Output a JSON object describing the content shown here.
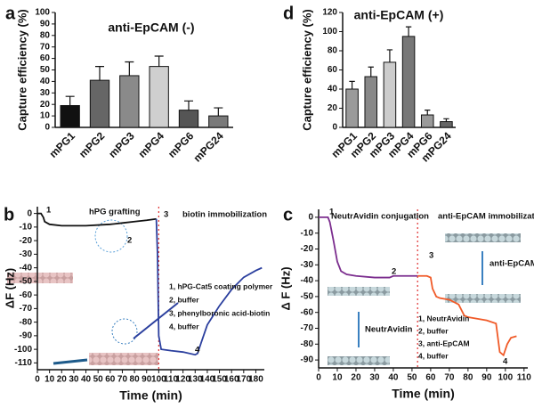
{
  "chart_data": [
    {
      "panel": "a",
      "type": "bar",
      "title": "anti-EpCAM (-)",
      "ylabel": "Capture efficiency (%)",
      "categories": [
        "mPG1",
        "mPG2",
        "mPG3",
        "mPG4",
        "mPG6",
        "mPG24"
      ],
      "values": [
        19,
        41,
        45,
        53,
        15,
        10
      ],
      "errors": [
        8,
        12,
        12,
        9,
        8,
        7
      ],
      "colors": [
        "#111111",
        "#666666",
        "#8a8a8a",
        "#cfcfcf",
        "#555555",
        "#7a7a7a"
      ],
      "ylim": [
        0,
        100
      ],
      "yticks": [
        0,
        10,
        20,
        30,
        40,
        50,
        60,
        70,
        80,
        90,
        100
      ]
    },
    {
      "panel": "d",
      "type": "bar",
      "title": "anti-EpCAM (+)",
      "ylabel": "Capture efficiency (%)",
      "categories": [
        "mPG1",
        "mPG2",
        "mPG3",
        "mPG4",
        "mPG6",
        "mPG24"
      ],
      "values": [
        40,
        53,
        68,
        95,
        13,
        6
      ],
      "errors": [
        8,
        10,
        13,
        10,
        5,
        3
      ],
      "colors": [
        "#9a9a9a",
        "#888888",
        "#cccccc",
        "#777777",
        "#9a9a9a",
        "#666666"
      ],
      "ylim": [
        0,
        120
      ],
      "yticks": [
        0,
        20,
        40,
        60,
        80,
        100,
        120
      ]
    },
    {
      "panel": "b",
      "type": "line",
      "xlabel": "Time (min)",
      "ylabel": "ΔF (Hz)",
      "series": [
        {
          "color": "#111111",
          "x": [
            0,
            3,
            5,
            6,
            10,
            20,
            40,
            60,
            70,
            80,
            90,
            98
          ],
          "values": [
            0,
            0,
            -3,
            -6,
            -8,
            -9,
            -9,
            -8,
            -7,
            -6,
            -5,
            -4
          ]
        },
        {
          "color": "#2b3f9e",
          "x": [
            98,
            99,
            100,
            102,
            110,
            120,
            130,
            132,
            135,
            140,
            150,
            160,
            170,
            180,
            185
          ],
          "values": [
            -4,
            -30,
            -90,
            -100,
            -101,
            -102,
            -104,
            -103,
            -95,
            -82,
            -68,
            -56,
            -47,
            -42,
            -40
          ]
        }
      ],
      "xlim": [
        0,
        187
      ],
      "xticks": [
        0,
        10,
        20,
        30,
        40,
        50,
        60,
        70,
        80,
        90,
        100,
        110,
        120,
        130,
        140,
        150,
        160,
        170,
        180
      ],
      "ylim": [
        -115,
        5
      ],
      "yticks": [
        0,
        -10,
        -20,
        -30,
        -40,
        -50,
        -60,
        -70,
        -80,
        -90,
        -100,
        -110
      ],
      "vline": 100,
      "annotations": [
        "hPG grafting",
        "biotin immobilization",
        "1",
        "2",
        "3",
        "4"
      ],
      "notes": [
        "1, hPG-Cat5 coating polymer",
        "2, buffer",
        "3, phenylboronic acid-biotin",
        "4, buffer"
      ]
    },
    {
      "panel": "c",
      "type": "line",
      "xlabel": "Time (min)",
      "ylabel": "Δ F (Hz)",
      "series": [
        {
          "color": "#7b2d8e",
          "x": [
            0,
            5,
            6,
            8,
            10,
            12,
            15,
            20,
            30,
            38,
            40,
            45,
            53
          ],
          "values": [
            0,
            0,
            -3,
            -15,
            -28,
            -34,
            -36,
            -37,
            -38,
            -38,
            -37,
            -37,
            -37
          ]
        },
        {
          "color": "#f05a28",
          "x": [
            53,
            58,
            60,
            61,
            63,
            65,
            70,
            75,
            78,
            80,
            90,
            95,
            97,
            99,
            101,
            103,
            106
          ],
          "values": [
            -37,
            -37,
            -38,
            -45,
            -50,
            -51,
            -52,
            -55,
            -62,
            -63,
            -65,
            -67,
            -85,
            -87,
            -80,
            -76,
            -75
          ]
        }
      ],
      "xlim": [
        0,
        112
      ],
      "xticks": [
        0,
        10,
        20,
        30,
        40,
        50,
        60,
        70,
        80,
        90,
        100,
        110
      ],
      "ylim": [
        -95,
        5
      ],
      "yticks": [
        0,
        -10,
        -20,
        -30,
        -40,
        -50,
        -60,
        -70,
        -80,
        -90
      ],
      "vline": 53,
      "annotations": [
        "NeutrAvidin conjugation",
        "anti-EpCAM immobilization",
        "1",
        "2",
        "3",
        "4",
        "NeutrAvidin",
        "anti-EpCAM"
      ],
      "notes": [
        "1, NeutrAvidin",
        "2, buffer",
        "3, anti-EpCAM",
        "4, buffer"
      ]
    }
  ]
}
